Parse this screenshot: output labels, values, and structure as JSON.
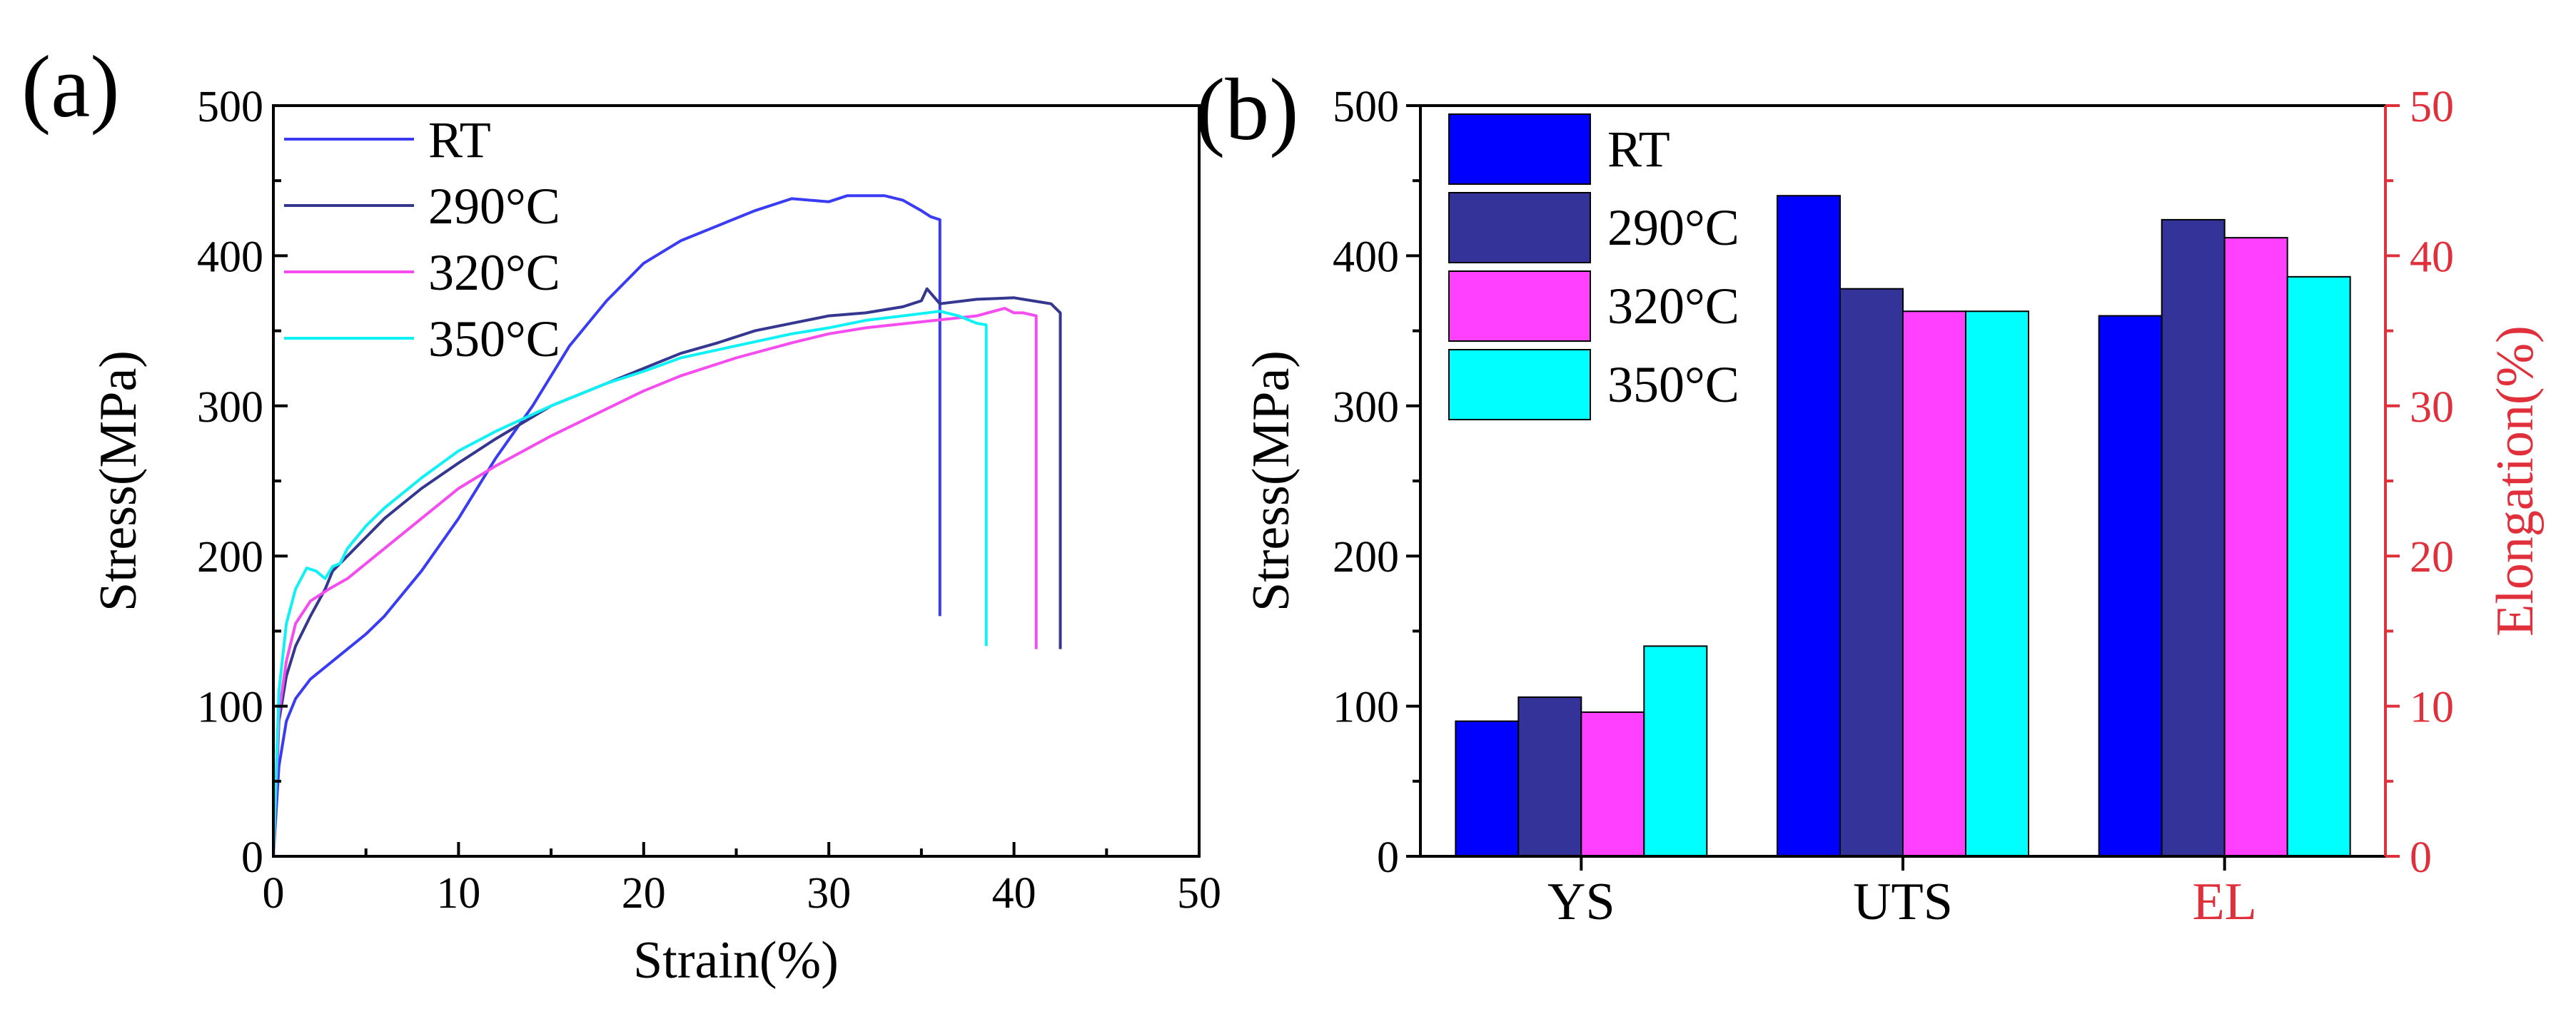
{
  "colors": {
    "rt": "#3a3cf5",
    "c290": "#343690",
    "c320": "#f54cf0",
    "c350": "#10f1f5",
    "bar_rt": "#0000ff",
    "bar_290": "#333399",
    "bar_320": "#ff40ff",
    "bar_350": "#00ffff",
    "elongation_axis": "#e0303c"
  },
  "chart_data": [
    {
      "panel_label": "(a)",
      "type": "line",
      "xlabel": "Strain(%)",
      "ylabel": "Stress(MPa)",
      "xlim": [
        0,
        50
      ],
      "ylim": [
        0,
        500
      ],
      "xticks": [
        "0",
        "10",
        "20",
        "30",
        "40",
        "50"
      ],
      "yticks": [
        "0",
        "100",
        "200",
        "300",
        "400",
        "500"
      ],
      "legend_position": "top-left",
      "series": [
        {
          "name": "RT",
          "color_key": "rt",
          "x": [
            0,
            0.3,
            0.7,
            1.2,
            2,
            3,
            4,
            5,
            6,
            8,
            10,
            12,
            14,
            16,
            18,
            20,
            22,
            24,
            26,
            28,
            29,
            30,
            31,
            33,
            34,
            35,
            35.5,
            36,
            36,
            36
          ],
          "y": [
            0,
            60,
            90,
            105,
            118,
            128,
            138,
            148,
            160,
            190,
            225,
            265,
            300,
            340,
            370,
            395,
            410,
            420,
            430,
            438,
            437,
            436,
            440,
            440,
            437,
            430,
            426,
            424,
            300,
            160
          ]
        },
        {
          "name": "290°C",
          "color_key": "c290",
          "x": [
            0,
            0.3,
            0.7,
            1.2,
            2,
            2.8,
            3.2,
            4,
            6,
            8,
            10,
            12,
            15,
            18,
            20,
            22,
            24,
            26,
            28,
            30,
            32,
            34,
            35,
            35.3,
            36,
            38,
            40,
            41,
            42,
            42.5,
            42.5,
            42.5
          ],
          "y": [
            0,
            90,
            120,
            140,
            160,
            178,
            190,
            200,
            225,
            245,
            262,
            278,
            300,
            315,
            325,
            335,
            342,
            350,
            355,
            360,
            362,
            366,
            370,
            378,
            368,
            371,
            372,
            370,
            368,
            362,
            250,
            138
          ]
        },
        {
          "name": "320°C",
          "color_key": "c320",
          "x": [
            0,
            0.3,
            0.7,
            1.2,
            2,
            3,
            4,
            6,
            8,
            10,
            12,
            15,
            18,
            20,
            22,
            25,
            28,
            30,
            32,
            35,
            38,
            39.5,
            40,
            40.5,
            41.2,
            41.2,
            41.2
          ],
          "y": [
            0,
            95,
            130,
            155,
            170,
            178,
            185,
            205,
            225,
            245,
            260,
            280,
            298,
            310,
            320,
            332,
            342,
            348,
            352,
            356,
            360,
            365,
            362,
            362,
            360,
            250,
            138
          ]
        },
        {
          "name": "350°C",
          "color_key": "c350",
          "x": [
            0,
            0.3,
            0.7,
            1.2,
            1.8,
            2.3,
            2.8,
            3.2,
            3.6,
            4,
            5,
            6,
            8,
            10,
            12,
            15,
            18,
            20,
            22,
            25,
            28,
            30,
            32,
            34,
            36,
            37,
            38,
            38.5,
            38.5,
            38.5
          ],
          "y": [
            0,
            110,
            155,
            178,
            192,
            190,
            185,
            193,
            195,
            205,
            220,
            232,
            252,
            270,
            283,
            300,
            315,
            323,
            332,
            340,
            348,
            352,
            357,
            360,
            363,
            360,
            355,
            354,
            250,
            140
          ]
        }
      ]
    },
    {
      "panel_label": "(b)",
      "type": "bar",
      "categories": [
        "YS",
        "UTS",
        "EL"
      ],
      "ylabel": "Stress(MPa)",
      "ylim": [
        0,
        500
      ],
      "yticks": [
        "0",
        "100",
        "200",
        "300",
        "400",
        "500"
      ],
      "y2label": "Elongation(%)",
      "y2lim": [
        0,
        50
      ],
      "y2ticks": [
        "0",
        "10",
        "20",
        "30",
        "40",
        "50"
      ],
      "legend_position": "top-left",
      "series": [
        {
          "name": "RT",
          "color_key": "bar_rt",
          "values": [
            90,
            440,
            36
          ]
        },
        {
          "name": "290°C",
          "color_key": "bar_290",
          "values": [
            106,
            378,
            42.4
          ]
        },
        {
          "name": "320°C",
          "color_key": "bar_320",
          "values": [
            96,
            363,
            41.2
          ]
        },
        {
          "name": "350°C",
          "color_key": "bar_350",
          "values": [
            140,
            363,
            38.6
          ]
        }
      ],
      "secondary_axis_categories": [
        "EL"
      ]
    }
  ]
}
